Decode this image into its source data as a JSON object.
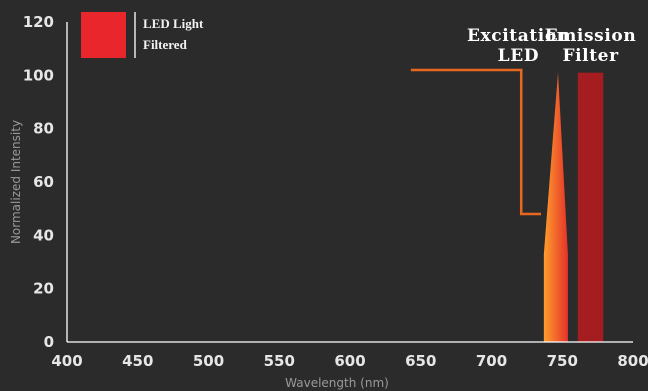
{
  "chart_data": {
    "type": "area",
    "xlabel": "Wavelength (nm)",
    "ylabel": "Normalized Intensity",
    "xlim": [
      400,
      800
    ],
    "ylim": [
      0,
      120
    ],
    "x_ticks": [
      400,
      450,
      500,
      550,
      600,
      650,
      700,
      750,
      800
    ],
    "y_ticks": [
      0,
      20,
      40,
      60,
      80,
      100,
      120
    ],
    "grid": false,
    "legend": {
      "position": "top-left",
      "label_line1": "LED Light",
      "label_line2": "Filtered",
      "color": "#e8262b"
    },
    "series": [
      {
        "name": "LED Light Filtered",
        "kind": "filled-spectrum",
        "x": [
          737,
          737,
          747,
          754,
          754
        ],
        "y": [
          0,
          33,
          101,
          33,
          0
        ],
        "gradient": [
          "#ff9e2c",
          "#e4322a"
        ]
      },
      {
        "name": "Emission Filter",
        "kind": "band",
        "x_range": [
          761,
          779
        ],
        "y_max": 101,
        "color": "#a51d21"
      },
      {
        "name": "Excitation LED",
        "kind": "step-line",
        "x": [
          643,
          721,
          721,
          735
        ],
        "y": [
          102,
          102,
          48,
          48
        ],
        "color": "#e8681f"
      }
    ],
    "annotations": [
      {
        "line1": "Excitation",
        "line2": "LED",
        "x": 719
      },
      {
        "line1": "Emission",
        "line2": "Filter",
        "x": 770
      }
    ]
  }
}
